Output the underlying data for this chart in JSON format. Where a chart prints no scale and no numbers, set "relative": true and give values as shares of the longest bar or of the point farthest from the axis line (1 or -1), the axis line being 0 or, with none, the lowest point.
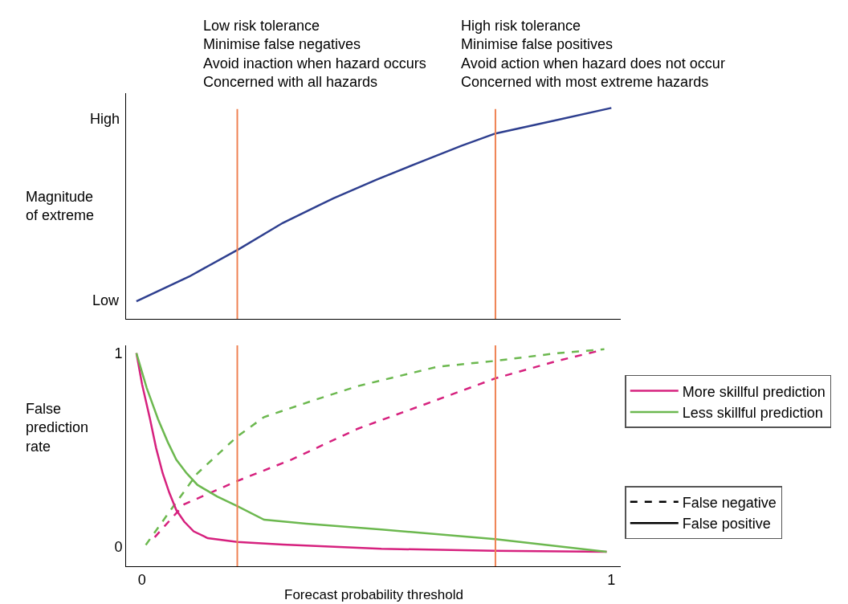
{
  "chart_data": [
    {
      "type": "line",
      "relative": true,
      "ylabel": "Magnitude\nof extreme",
      "annotations": [
        "High",
        "Low"
      ],
      "x": [
        -0.012,
        0.1,
        0.208,
        0.3,
        0.408,
        0.5,
        0.6,
        0.68,
        0.753,
        0.87,
        1.0
      ],
      "values": [
        0.083,
        0.2,
        0.333,
        0.455,
        0.572,
        0.66,
        0.75,
        0.82,
        0.879,
        0.936,
        1.0
      ],
      "color": "#2e3f8f",
      "xlim": [
        -0.034,
        1.02
      ],
      "ref_lines": [
        {
          "axis": "x",
          "value": 0.203,
          "color": "#ef8354",
          "label": "Low risk tolerance\nMinimise false negatives\nAvoid inaction when hazard occurs\nConcerned with all hazards"
        },
        {
          "axis": "x",
          "value": 0.753,
          "color": "#ef8354",
          "label": "High risk tolerance\nMinimise false positives\nAvoid action when hazard does not occur\nConcerned with most extreme hazards"
        }
      ]
    },
    {
      "type": "line",
      "xlabel": "Forecast probability threshold",
      "ylabel": "False\nprediction\nrate",
      "xlim": [
        -0.034,
        1.02
      ],
      "xticks": [
        0,
        1
      ],
      "ylim": [
        -0.1,
        1.04
      ],
      "yticks": [
        0,
        1
      ],
      "legend": "right",
      "series": [
        {
          "color": "#d6217e",
          "line_style": "dashed",
          "x": [
            0.027,
            0.09,
            0.203,
            0.318,
            0.46,
            0.63,
            0.753,
            0.885,
            0.97
          ],
          "values": [
            0.05,
            0.22,
            0.34,
            0.45,
            0.61,
            0.76,
            0.87,
            0.96,
            1.01
          ]
        },
        {
          "color": "#6cb84f",
          "line_style": "dashed",
          "x": [
            0.008,
            0.061,
            0.118,
            0.203,
            0.26,
            0.37,
            0.46,
            0.63,
            0.753,
            0.885,
            0.985
          ],
          "values": [
            0.01,
            0.19,
            0.38,
            0.57,
            0.67,
            0.76,
            0.83,
            0.93,
            0.96,
            1.0,
            1.02
          ]
        },
        {
          "name": "More skillful prediction",
          "color": "#d6217e",
          "line_style": "solid",
          "x": [
            -0.012,
            0.0,
            0.017,
            0.03,
            0.044,
            0.058,
            0.073,
            0.09,
            0.11,
            0.14,
            0.203,
            0.3,
            0.51,
            0.75,
            0.99
          ],
          "values": [
            1.0,
            0.84,
            0.66,
            0.51,
            0.38,
            0.28,
            0.19,
            0.13,
            0.08,
            0.045,
            0.025,
            0.012,
            -0.01,
            -0.02,
            -0.025
          ]
        },
        {
          "name": "Less skillful prediction",
          "color": "#6cb84f",
          "line_style": "solid",
          "x": [
            -0.012,
            0.01,
            0.034,
            0.055,
            0.073,
            0.095,
            0.118,
            0.16,
            0.203,
            0.26,
            0.35,
            0.51,
            0.753,
            0.99
          ],
          "values": [
            1.0,
            0.82,
            0.66,
            0.54,
            0.45,
            0.38,
            0.32,
            0.26,
            0.21,
            0.14,
            0.12,
            0.09,
            0.04,
            -0.025
          ]
        },
        {
          "name": "False negative",
          "color": "#000000",
          "line_style": "dashed"
        },
        {
          "name": "False positive",
          "color": "#000000",
          "line_style": "solid"
        }
      ],
      "ref_lines": [
        {
          "axis": "x",
          "value": 0.203,
          "color": "#ef8354"
        },
        {
          "axis": "x",
          "value": 0.753,
          "color": "#ef8354"
        }
      ]
    }
  ]
}
